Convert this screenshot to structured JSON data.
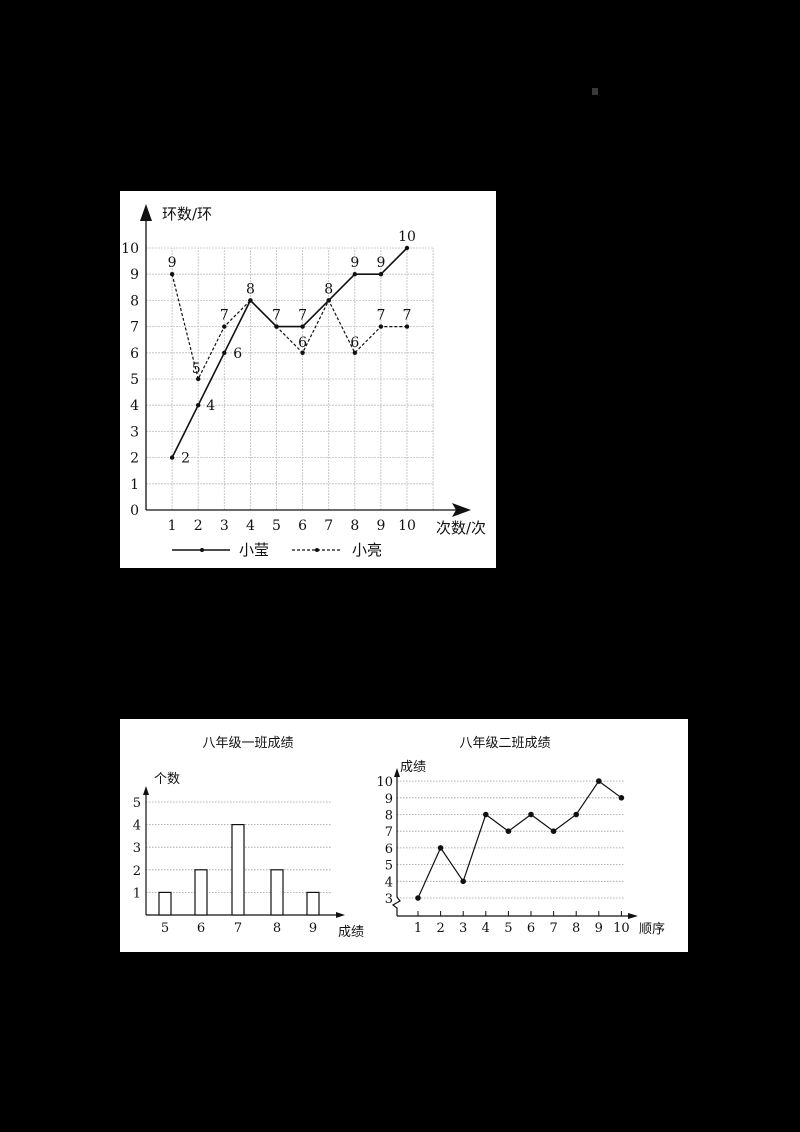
{
  "chart_data": [
    {
      "type": "line",
      "title": "",
      "xlabel": "次数/次",
      "ylabel": "环数/环",
      "x": [
        1,
        2,
        3,
        4,
        5,
        6,
        7,
        8,
        9,
        10
      ],
      "ylim": [
        0,
        10
      ],
      "yticks": [
        0,
        1,
        2,
        3,
        4,
        5,
        6,
        7,
        8,
        9,
        10
      ],
      "grid": true,
      "legend_position": "bottom",
      "series": [
        {
          "name": "小莹",
          "style": "solid",
          "values": [
            2,
            4,
            6,
            8,
            7,
            7,
            8,
            9,
            9,
            10
          ]
        },
        {
          "name": "小亮",
          "style": "dashed",
          "values": [
            9,
            5,
            7,
            8,
            7,
            6,
            8,
            6,
            7,
            7
          ]
        }
      ],
      "data_labels": true
    },
    {
      "type": "bar",
      "title": "八年级一班成绩",
      "xlabel": "成绩",
      "ylabel": "个数",
      "categories": [
        "5",
        "6",
        "7",
        "8",
        "9"
      ],
      "values": [
        1,
        2,
        4,
        2,
        1
      ],
      "ylim": [
        0,
        5
      ],
      "yticks": [
        1,
        2,
        3,
        4,
        5
      ],
      "grid": true
    },
    {
      "type": "line",
      "title": "八年级二班成绩",
      "xlabel": "顺序",
      "ylabel": "成绩",
      "x": [
        1,
        2,
        3,
        4,
        5,
        6,
        7,
        8,
        9,
        10
      ],
      "values": [
        3,
        6,
        4,
        8,
        7,
        8,
        7,
        8,
        10,
        9
      ],
      "ylim": [
        3,
        10
      ],
      "yticks": [
        3,
        4,
        5,
        6,
        7,
        8,
        9,
        10
      ],
      "axis_break": true,
      "grid": true
    }
  ],
  "chart1": {
    "ylabel": "环数/环",
    "xlabel": "次数/次",
    "legend": {
      "solid": "小莹",
      "dashed": "小亮"
    },
    "yticks": [
      "0",
      "1",
      "2",
      "3",
      "4",
      "5",
      "6",
      "7",
      "8",
      "9",
      "10"
    ],
    "xticks": [
      "1",
      "2",
      "3",
      "4",
      "5",
      "6",
      "7",
      "8",
      "9",
      "10"
    ],
    "labels_solid": [
      "2",
      "4",
      "6",
      "8",
      "7",
      "7",
      "8",
      "9",
      "9",
      "10"
    ],
    "labels_dashed": [
      "9",
      "5",
      "7",
      "",
      "",
      "6",
      "",
      "6",
      "7",
      "7"
    ]
  },
  "chart2": {
    "title": "八年级一班成绩",
    "ylabel": "个数",
    "xlabel": "成绩",
    "yticks": [
      "1",
      "2",
      "3",
      "4",
      "5"
    ],
    "xticks": [
      "5",
      "6",
      "7",
      "8",
      "9"
    ]
  },
  "chart3": {
    "title": "八年级二班成绩",
    "ylabel": "成绩",
    "xlabel": "顺序",
    "yticks": [
      "3",
      "4",
      "5",
      "6",
      "7",
      "8",
      "9",
      "10"
    ],
    "xticks": [
      "1",
      "2",
      "3",
      "4",
      "5",
      "6",
      "7",
      "8",
      "9",
      "10"
    ]
  }
}
